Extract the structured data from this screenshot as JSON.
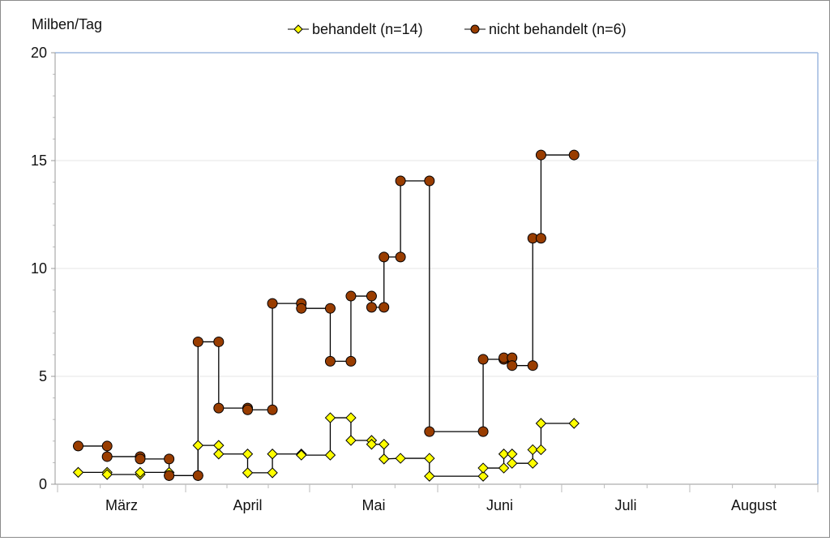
{
  "chart_data": {
    "type": "line",
    "ylabel": "Milben/Tag",
    "ylim": [
      0,
      20
    ],
    "yticks": [
      0,
      5,
      10,
      15,
      20
    ],
    "x_unit": "days since 1 March",
    "xlim": [
      0,
      184
    ],
    "month_starts": [
      0,
      31,
      61,
      92,
      122,
      153,
      184
    ],
    "xtick_labels": [
      "März",
      "April",
      "Mai",
      "Juni",
      "Juli",
      "August"
    ],
    "grid": "horizontal",
    "legend_position": "top",
    "series": [
      {
        "name": "behandelt (n=14)",
        "marker": "diamond",
        "color": "#FFFF00",
        "points": [
          [
            5,
            0.55
          ],
          [
            12,
            0.55
          ],
          [
            12,
            0.45
          ],
          [
            20,
            0.45
          ],
          [
            20,
            0.55
          ],
          [
            27,
            0.55
          ],
          [
            27,
            0.4
          ],
          [
            34,
            0.4
          ],
          [
            34,
            1.8
          ],
          [
            39,
            1.8
          ],
          [
            39,
            1.4
          ],
          [
            46,
            1.4
          ],
          [
            46,
            0.53
          ],
          [
            52,
            0.53
          ],
          [
            52,
            1.4
          ],
          [
            59,
            1.4
          ],
          [
            59,
            1.35
          ],
          [
            66,
            1.35
          ],
          [
            66,
            3.08
          ],
          [
            71,
            3.08
          ],
          [
            71,
            2.03
          ],
          [
            76,
            2.03
          ],
          [
            76,
            1.85
          ],
          [
            79,
            1.85
          ],
          [
            79,
            1.17
          ],
          [
            83,
            1.2
          ],
          [
            90,
            1.2
          ],
          [
            90,
            0.37
          ],
          [
            103,
            0.37
          ],
          [
            103,
            0.75
          ],
          [
            108,
            0.75
          ],
          [
            108,
            1.4
          ],
          [
            110,
            1.4
          ],
          [
            110,
            0.97
          ],
          [
            115,
            0.97
          ],
          [
            115,
            1.6
          ],
          [
            117,
            1.6
          ],
          [
            117,
            2.82
          ],
          [
            125,
            2.82
          ]
        ]
      },
      {
        "name": "nicht behandelt (n=6)",
        "marker": "circle",
        "color": "#993D00",
        "points": [
          [
            5,
            1.77
          ],
          [
            12,
            1.77
          ],
          [
            12,
            1.28
          ],
          [
            20,
            1.28
          ],
          [
            20,
            1.17
          ],
          [
            27,
            1.17
          ],
          [
            27,
            0.4
          ],
          [
            34,
            0.4
          ],
          [
            34,
            6.6
          ],
          [
            39,
            6.6
          ],
          [
            39,
            3.53
          ],
          [
            46,
            3.53
          ],
          [
            46,
            3.45
          ],
          [
            52,
            3.45
          ],
          [
            52,
            8.38
          ],
          [
            59,
            8.38
          ],
          [
            59,
            8.15
          ],
          [
            66,
            8.15
          ],
          [
            66,
            5.7
          ],
          [
            71,
            5.7
          ],
          [
            71,
            8.72
          ],
          [
            76,
            8.72
          ],
          [
            76,
            8.2
          ],
          [
            79,
            8.2
          ],
          [
            79,
            10.53
          ],
          [
            83,
            10.53
          ],
          [
            83,
            14.06
          ],
          [
            90,
            14.06
          ],
          [
            90,
            2.44
          ],
          [
            103,
            2.44
          ],
          [
            103,
            5.79
          ],
          [
            108,
            5.79
          ],
          [
            108,
            5.86
          ],
          [
            110,
            5.86
          ],
          [
            110,
            5.5
          ],
          [
            115,
            5.5
          ],
          [
            115,
            11.4
          ],
          [
            117,
            11.4
          ],
          [
            117,
            15.26
          ],
          [
            125,
            15.26
          ]
        ]
      }
    ]
  }
}
